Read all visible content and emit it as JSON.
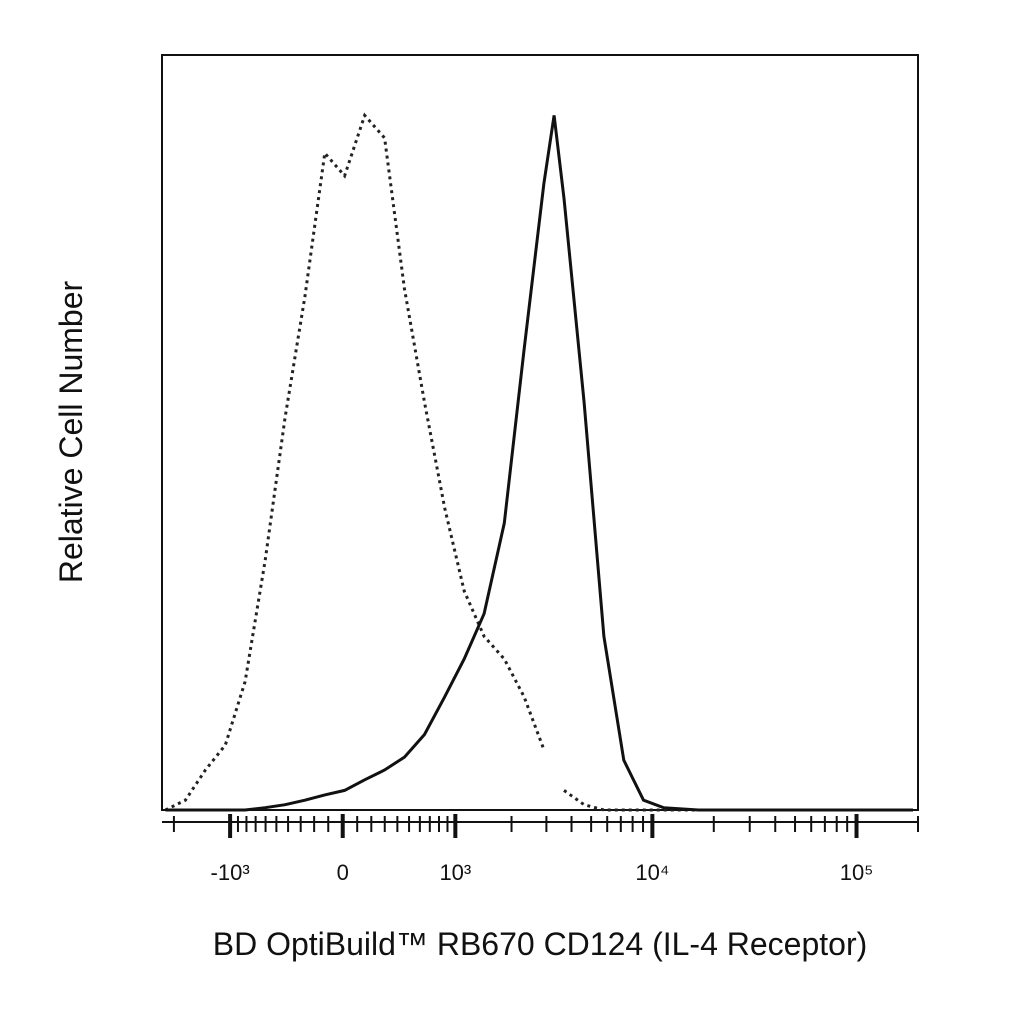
{
  "chart_data": {
    "type": "histogram-line",
    "xlabel": "BD OptiBuild™ RB670 CD124 (IL-4 Receptor)",
    "ylabel": "Relative Cell Number",
    "xscale": "asinh",
    "x": [
      -2210,
      -1745,
      -1370,
      -1065,
      -815,
      -605,
      -425,
      -268,
      -124,
      13,
      153,
      299,
      460,
      646,
      866,
      1122,
      1440,
      1836,
      2318,
      2916,
      3276,
      3672,
      4618,
      5777,
      7241,
      9046,
      11346,
      16836,
      51545,
      189000
    ],
    "series": [
      {
        "color": "#222222",
        "dash": "dotted",
        "values": [
          0,
          1.3,
          5.3,
          8.6,
          17,
          33,
          52,
          68,
          87,
          84,
          92,
          89,
          69,
          54,
          40,
          29,
          23,
          20,
          15,
          8,
          null,
          2.6,
          0.7,
          0,
          0,
          0,
          0,
          0,
          0,
          0
        ]
      },
      {
        "color": "#111111",
        "dash": "solid",
        "values": [
          0,
          0,
          0,
          0,
          0,
          0.3,
          0.7,
          1.3,
          2,
          2.6,
          4,
          5.3,
          7,
          10,
          15,
          20,
          26,
          38,
          61,
          83,
          92,
          81,
          54,
          23,
          6.6,
          1.3,
          0.3,
          0,
          0,
          0
        ]
      }
    ],
    "xlim": [
      -2300,
      200000
    ],
    "ylim": [
      0,
      100
    ],
    "xticks": [
      {
        "value": -1000,
        "label": "-10³"
      },
      0,
      {
        "value": 1000,
        "label": "10³"
      },
      {
        "value": 10000,
        "label": "10⁴"
      },
      {
        "value": 100000,
        "label": "10⁵"
      }
    ],
    "xminorticks": [
      -2000,
      -900,
      -800,
      -700,
      -600,
      -500,
      -400,
      -300,
      -200,
      -100,
      100,
      200,
      300,
      400,
      500,
      600,
      700,
      800,
      900,
      2000,
      3000,
      4000,
      5000,
      6000,
      7000,
      8000,
      9000,
      20000,
      30000,
      40000,
      50000,
      60000,
      70000,
      80000,
      90000,
      200000
    ]
  }
}
